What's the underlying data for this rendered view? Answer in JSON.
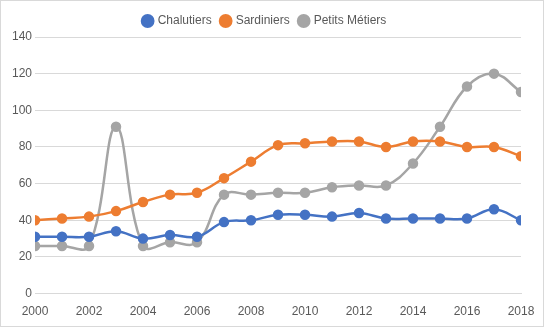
{
  "chart_data": {
    "type": "line",
    "x": [
      2000,
      2001,
      2002,
      2003,
      2004,
      2005,
      2006,
      2007,
      2008,
      2009,
      2010,
      2011,
      2012,
      2013,
      2014,
      2015,
      2016,
      2017,
      2018
    ],
    "series": [
      {
        "name": "Chalutiers",
        "color": "#4472c4",
        "values": [
          31,
          31,
          31,
          34,
          30,
          32,
          31,
          39,
          40,
          43,
          43,
          42,
          44,
          41,
          41,
          41,
          41,
          46,
          40
        ]
      },
      {
        "name": "Sardiniers",
        "color": "#ed7d31",
        "values": [
          40,
          41,
          42,
          45,
          50,
          54,
          55,
          63,
          72,
          81,
          82,
          83,
          83,
          80,
          83,
          83,
          80,
          80,
          75
        ]
      },
      {
        "name": "Petits Métiers",
        "color": "#a5a5a5",
        "values": [
          26,
          26,
          26,
          91,
          26,
          28,
          28,
          54,
          54,
          55,
          55,
          58,
          59,
          59,
          71,
          91,
          113,
          120,
          110
        ]
      }
    ],
    "xlim": [
      2000,
      2018
    ],
    "xticks": [
      2000,
      2002,
      2004,
      2006,
      2008,
      2010,
      2012,
      2014,
      2016,
      2018
    ],
    "ylim": [
      0,
      140
    ],
    "yticks": [
      0,
      20,
      40,
      60,
      80,
      100,
      120,
      140
    ],
    "grid": true,
    "legend": "top",
    "marker": "circle",
    "line_style": "solid"
  }
}
